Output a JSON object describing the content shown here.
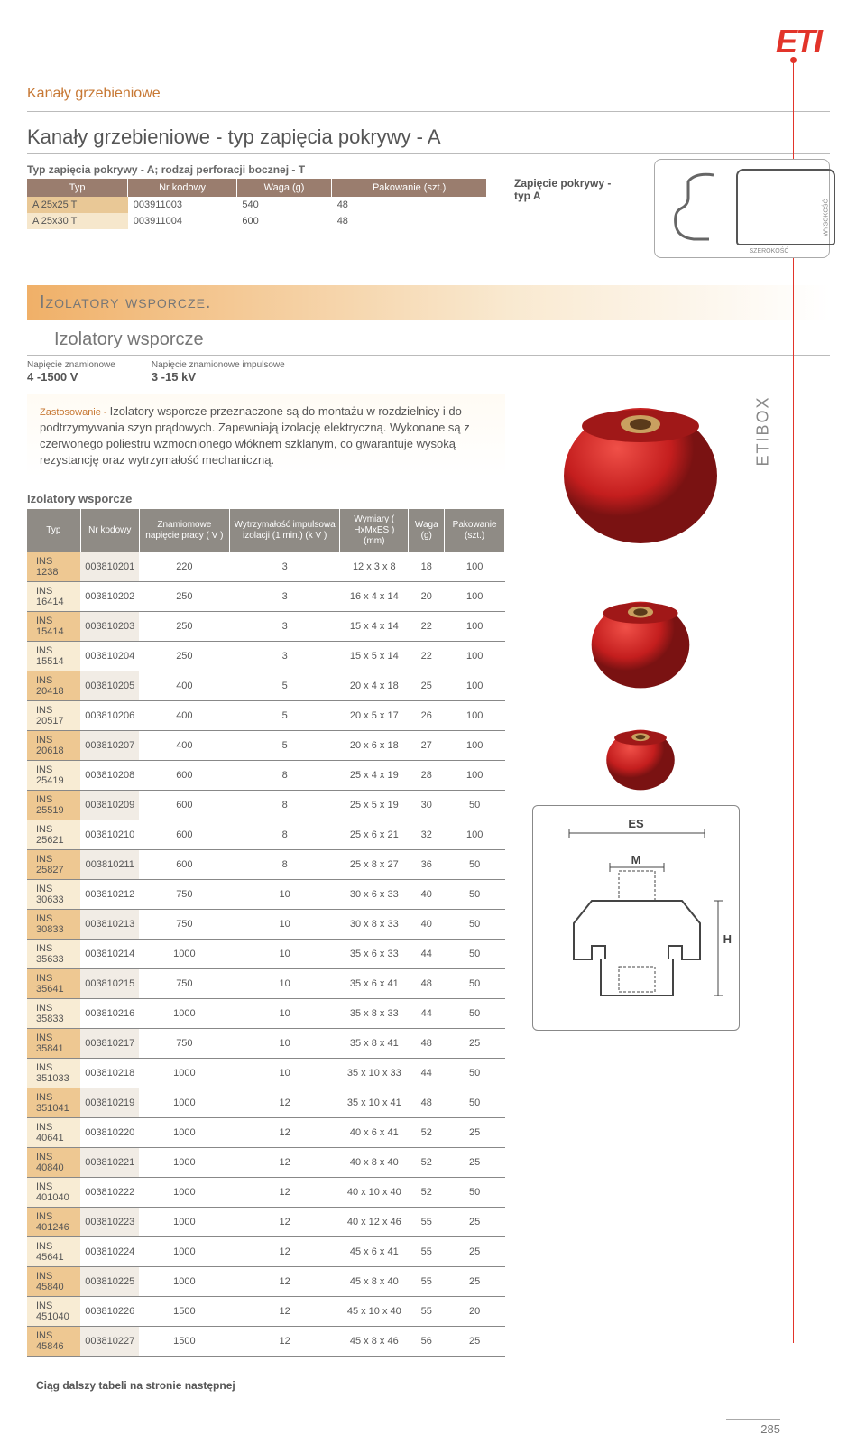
{
  "logo": "ETI",
  "section_label": "Kanały grzebieniowe",
  "title1": "Kanały grzebieniowe  - typ zapięcia pokrywy - A",
  "table1": {
    "caption": "Typ zapięcia pokrywy - A; rodzaj perforacji bocznej - T",
    "headers": [
      "Typ",
      "Nr kodowy",
      "Waga (g)",
      "Pakowanie (szt.)"
    ],
    "rows": [
      [
        "A 25x25 T",
        "003911003",
        "540",
        "48"
      ],
      [
        "A 25x30 T",
        "003911004",
        "600",
        "48"
      ]
    ],
    "caption_right": "Zapięcie pokrywy - typ A"
  },
  "diagram": {
    "szerokosc": "SZEROKOŚĆ",
    "wysokosc": "WYSOKOŚĆ"
  },
  "gradbar_title": "Izolatory wsporcze.",
  "sub2_title": "Izolatory wsporcze",
  "specs": [
    {
      "label": "Napięcie znamionowe",
      "value": "4 -1500 V"
    },
    {
      "label": "Napięcie znamionowe impulsowe",
      "value": "3 -15 kV"
    }
  ],
  "desc": {
    "label": "Zastosowanie - ",
    "text": "Izolatory wsporcze przeznaczone są do montażu w rozdzielnicy i do podtrzymywania szyn prądowych. Zapewniają izolację elektryczną. Wykonane są z czerwonego poliestru wzmocnionego włóknem szklanym, co gwarantuje wysoką rezystancję oraz wytrzymałość mechaniczną."
  },
  "table2": {
    "caption": "Izolatory wsporcze",
    "headers": [
      "Typ",
      "Nr kodowy",
      "Znamiomowe napięcie pracy ( V )",
      "Wytrzymałość impulsowa izolacji (1 min.)  (k V )",
      "Wymiary ( HxMxES  ) (mm)",
      "Waga (g)",
      "Pakowanie (szt.)"
    ],
    "rows": [
      [
        "INS 1238",
        "003810201",
        "220",
        "3",
        "12 x 3 x 8",
        "18",
        "100"
      ],
      [
        "INS 16414",
        "003810202",
        "250",
        "3",
        "16 x 4 x 14",
        "20",
        "100"
      ],
      [
        "INS 15414",
        "003810203",
        "250",
        "3",
        "15 x 4 x 14",
        "22",
        "100"
      ],
      [
        "INS 15514",
        "003810204",
        "250",
        "3",
        "15 x 5 x 14",
        "22",
        "100"
      ],
      [
        "INS 20418",
        "003810205",
        "400",
        "5",
        "20 x 4 x 18",
        "25",
        "100"
      ],
      [
        "INS 20517",
        "003810206",
        "400",
        "5",
        "20 x 5 x 17",
        "26",
        "100"
      ],
      [
        "INS 20618",
        "003810207",
        "400",
        "5",
        "20 x 6 x 18",
        "27",
        "100"
      ],
      [
        "INS 25419",
        "003810208",
        "600",
        "8",
        "25 x 4 x 19",
        "28",
        "100"
      ],
      [
        "INS 25519",
        "003810209",
        "600",
        "8",
        "25 x 5 x 19",
        "30",
        "50"
      ],
      [
        "INS 25621",
        "003810210",
        "600",
        "8",
        "25 x 6 x 21",
        "32",
        "100"
      ],
      [
        "INS 25827",
        "003810211",
        "600",
        "8",
        "25 x 8 x 27",
        "36",
        "50"
      ],
      [
        "INS 30633",
        "003810212",
        "750",
        "10",
        "30 x 6 x 33",
        "40",
        "50"
      ],
      [
        "INS 30833",
        "003810213",
        "750",
        "10",
        "30 x 8 x 33",
        "40",
        "50"
      ],
      [
        "INS 35633",
        "003810214",
        "1000",
        "10",
        "35 x 6 x 33",
        "44",
        "50"
      ],
      [
        "INS 35641",
        "003810215",
        "750",
        "10",
        "35 x 6 x 41",
        "48",
        "50"
      ],
      [
        "INS 35833",
        "003810216",
        "1000",
        "10",
        "35 x 8 x 33",
        "44",
        "50"
      ],
      [
        "INS 35841",
        "003810217",
        "750",
        "10",
        "35 x 8 x 41",
        "48",
        "25"
      ],
      [
        "INS 351033",
        "003810218",
        "1000",
        "10",
        "35 x 10 x 33",
        "44",
        "50"
      ],
      [
        "INS 351041",
        "003810219",
        "1000",
        "12",
        "35 x 10 x 41",
        "48",
        "50"
      ],
      [
        "INS 40641",
        "003810220",
        "1000",
        "12",
        "40 x 6 x 41",
        "52",
        "25"
      ],
      [
        "INS 40840",
        "003810221",
        "1000",
        "12",
        "40 x 8 x 40",
        "52",
        "25"
      ],
      [
        "INS 401040",
        "003810222",
        "1000",
        "12",
        "40 x 10 x 40",
        "52",
        "50"
      ],
      [
        "INS 401246",
        "003810223",
        "1000",
        "12",
        "40 x 12 x 46",
        "55",
        "25"
      ],
      [
        "INS 45641",
        "003810224",
        "1000",
        "12",
        "45 x 6 x 41",
        "55",
        "25"
      ],
      [
        "INS 45840",
        "003810225",
        "1000",
        "12",
        "45 x 8 x 40",
        "55",
        "25"
      ],
      [
        "INS 451040",
        "003810226",
        "1500",
        "12",
        "45 x 10 x 40",
        "55",
        "20"
      ],
      [
        "INS 45846",
        "003810227",
        "1500",
        "12",
        "45 x 8 x 46",
        "56",
        "25"
      ]
    ]
  },
  "dim_labels": {
    "es": "ES",
    "m": "M",
    "h": "H"
  },
  "etibox": "ETIBOX",
  "footnote": "Ciąg dalszy tabeli na stronie następnej",
  "page_num": "285",
  "colors": {
    "brand": "#e2342a",
    "accent": "#c77834",
    "insulator_red": "#d12b2b",
    "insulator_dark": "#8a1818"
  }
}
